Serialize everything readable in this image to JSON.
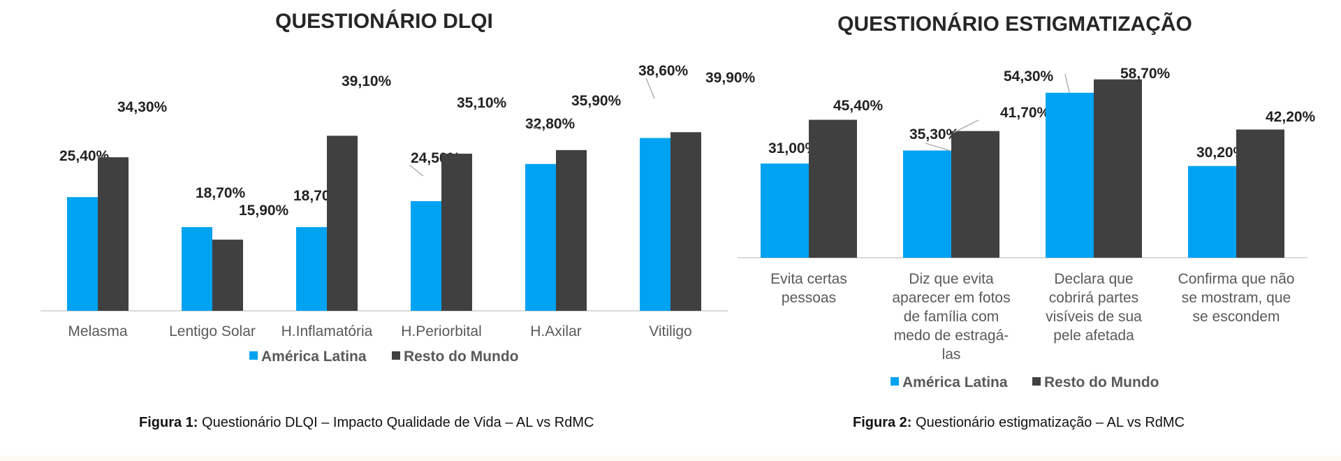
{
  "colors": {
    "series_a": "#00a2f2",
    "series_b": "#404040",
    "axis": "#d9d9d9",
    "text": "#222222",
    "tick_text": "#595959"
  },
  "chart_data": [
    {
      "type": "bar",
      "title": "QUESTIONÁRIO DLQI",
      "categories": [
        "Melasma",
        "Lentigo Solar",
        "H.Inflamatória",
        "H.Periorbital",
        "H.Axilar",
        "Vitiligo"
      ],
      "series": [
        {
          "name": "América Latina",
          "values": [
            25.4,
            18.7,
            18.7,
            24.5,
            32.8,
            38.6
          ],
          "labels": [
            "25,40%",
            "18,70%",
            "18,70%",
            "24,50%",
            "32,80%",
            "38,60%"
          ]
        },
        {
          "name": "Resto do Mundo",
          "values": [
            34.3,
            15.9,
            39.1,
            35.1,
            35.9,
            39.9
          ],
          "labels": [
            "34,30%",
            "15,90%",
            "39,10%",
            "35,10%",
            "35,90%",
            "39,90%"
          ]
        }
      ],
      "ylim": [
        0,
        43
      ],
      "xlabel": "",
      "ylabel": "",
      "legend": "bottom"
    },
    {
      "type": "bar",
      "title": "QUESTIONÁRIO ESTIGMATIZAÇÃO",
      "categories": [
        [
          "Evita certas",
          "pessoas"
        ],
        [
          "Diz que evita",
          "aparecer em fotos",
          "de família com",
          "medo de estragá-",
          "las"
        ],
        [
          "Declara que",
          "cobrirá partes",
          "visíveis de sua",
          "pele afetada"
        ],
        [
          "Confirma que não",
          "se mostram, que",
          "se escondem"
        ]
      ],
      "series": [
        {
          "name": "América Latina",
          "values": [
            31.0,
            35.3,
            54.3,
            30.2
          ],
          "labels": [
            "31,00%",
            "35,30%",
            "54,30%",
            "30,20%"
          ]
        },
        {
          "name": "Resto do Mundo",
          "values": [
            45.4,
            41.7,
            58.7,
            42.2
          ],
          "labels": [
            "45,40%",
            "41,70%",
            "58,70%",
            "42,20%"
          ]
        }
      ],
      "ylim": [
        0,
        60
      ],
      "xlabel": "",
      "ylabel": "",
      "legend": "bottom"
    }
  ],
  "captions": [
    {
      "label": "Figura 1:",
      "text": " Questionário DLQI – Impacto Qualidade de Vida – AL vs RdMC"
    },
    {
      "label": "Figura 2:",
      "text": " Questionário estigmatização – AL vs RdMC"
    }
  ]
}
